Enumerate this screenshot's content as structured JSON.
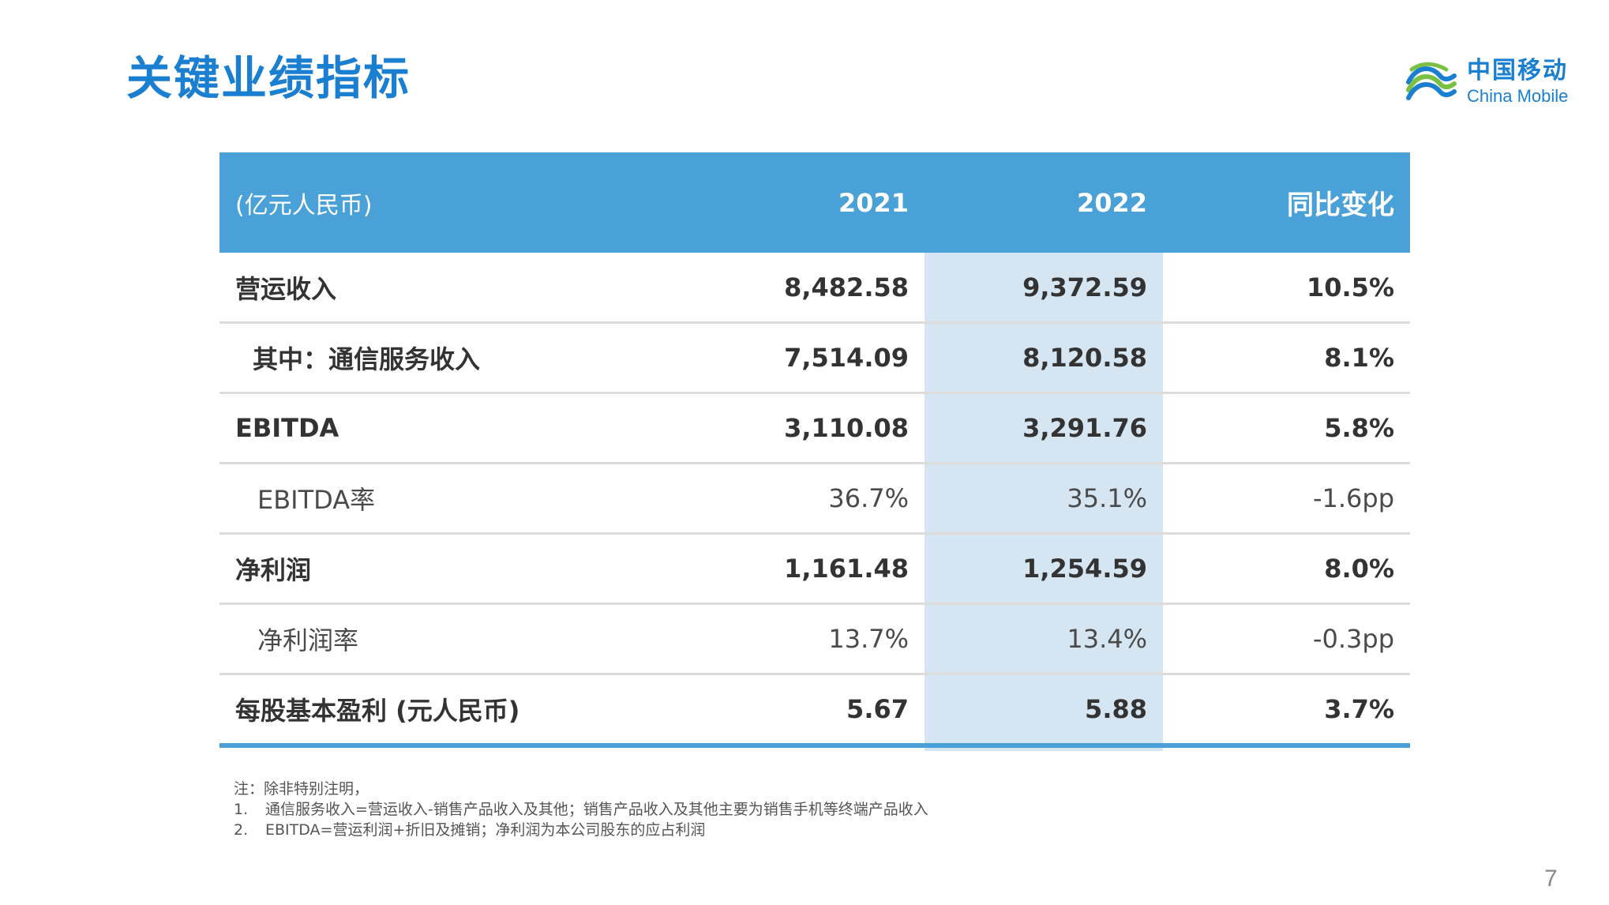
{
  "title": "关键业绩指标",
  "logo": {
    "name_cn": "中国移动",
    "name_en": "China Mobile",
    "icon": "china-mobile-logo-icon",
    "color": "#1a7fd0"
  },
  "table": {
    "header": {
      "unit": "(亿元人民币)",
      "col_2021": "2021",
      "col_2022": "2022",
      "col_change": "同比变化"
    },
    "rows": [
      {
        "label": "营运收入",
        "v2021": "8,482.58",
        "v2022": "9,372.59",
        "change": "10.5%"
      },
      {
        "label": "其中：通信服务收入",
        "v2021": "7,514.09",
        "v2022": "8,120.58",
        "change": "8.1%"
      },
      {
        "label": "EBITDA",
        "v2021": "3,110.08",
        "v2022": "3,291.76",
        "change": "5.8%"
      },
      {
        "label": "EBITDA率",
        "v2021": "36.7%",
        "v2022": "35.1%",
        "change": "-1.6pp"
      },
      {
        "label": "净利润",
        "v2021": "1,161.48",
        "v2022": "1,254.59",
        "change": "8.0%"
      },
      {
        "label": "净利润率",
        "v2021": "13.7%",
        "v2022": "13.4%",
        "change": "-0.3pp"
      },
      {
        "label": "每股基本盈利 (元人民币)",
        "v2021": "5.67",
        "v2022": "5.88",
        "change": "3.7%"
      }
    ]
  },
  "notes": {
    "intro": "注：除非特别注明，",
    "items": [
      {
        "num": "1.",
        "text": "通信服务收入=营运收入-销售产品收入及其他；销售产品收入及其他主要为销售手机等终端产品收入"
      },
      {
        "num": "2.",
        "text": "EBITDA=营运利润+折旧及摊销；净利润为本公司股东的应占利润"
      }
    ]
  },
  "page_number": "7",
  "colors": {
    "title": "#1a7fd0",
    "header_bg": "#4aa1d8",
    "highlight_col": "#d5e6f2",
    "row_divider": "#dcdcdc"
  }
}
